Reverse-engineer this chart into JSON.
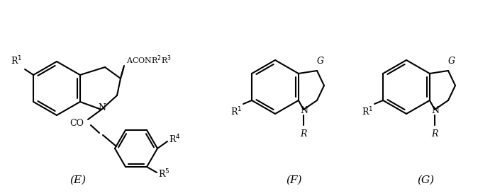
{
  "background_color": "#ffffff",
  "label_E": "(E)",
  "label_F": "(F)",
  "label_G": "(G)",
  "line_color": "#000000",
  "line_width": 1.5,
  "font_size_labels": 11,
  "font_size_small": 9,
  "font_size_annot": 8
}
